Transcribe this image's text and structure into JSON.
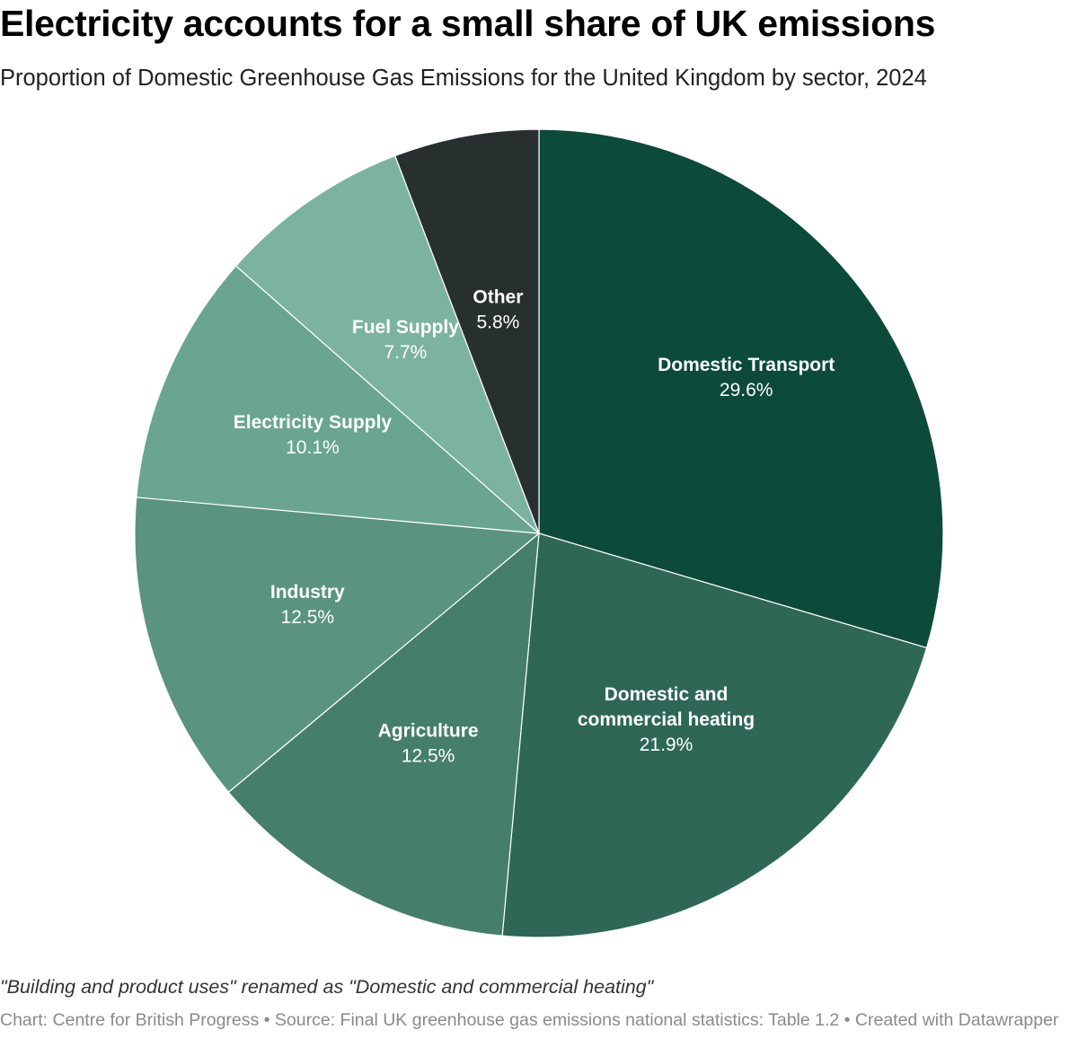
{
  "header": {
    "title": "Electricity accounts for a small share of UK emissions",
    "subtitle": "Proportion of Domestic Greenhouse Gas Emissions for the United Kingdom by sector, 2024"
  },
  "chart_data": {
    "type": "pie",
    "title": "Electricity accounts for a small share of UK emissions",
    "subtitle": "Proportion of Domestic Greenhouse Gas Emissions for the United Kingdom by sector, 2024",
    "unit": "%",
    "slices": [
      {
        "label": "Domestic Transport",
        "label_lines": [
          "Domestic Transport"
        ],
        "value": 29.6,
        "display": "29.6%",
        "color": "#0c4a3a"
      },
      {
        "label": "Domestic and commercial heating",
        "label_lines": [
          "Domestic and",
          "commercial heating"
        ],
        "value": 21.9,
        "display": "21.9%",
        "color": "#2e6755"
      },
      {
        "label": "Agriculture",
        "label_lines": [
          "Agriculture"
        ],
        "value": 12.5,
        "display": "12.5%",
        "color": "#457e6b"
      },
      {
        "label": "Industry",
        "label_lines": [
          "Industry"
        ],
        "value": 12.5,
        "display": "12.5%",
        "color": "#5a937f"
      },
      {
        "label": "Electricity Supply",
        "label_lines": [
          "Electricity Supply"
        ],
        "value": 10.1,
        "display": "10.1%",
        "color": "#69a590"
      },
      {
        "label": "Fuel Supply",
        "label_lines": [
          "Fuel Supply"
        ],
        "value": 7.7,
        "display": "7.7%",
        "color": "#7cb3a0"
      },
      {
        "label": "Other",
        "label_lines": [
          "Other"
        ],
        "value": 5.8,
        "display": "5.8%",
        "color": "#282f2f"
      }
    ]
  },
  "footer": {
    "note": "\"Building and product uses\" renamed as \"Domestic and commercial heating\"",
    "source": "Chart: Centre for British Progress • Source: Final UK greenhouse gas emissions national statistics: Table 1.2 • Created with Datawrapper"
  }
}
